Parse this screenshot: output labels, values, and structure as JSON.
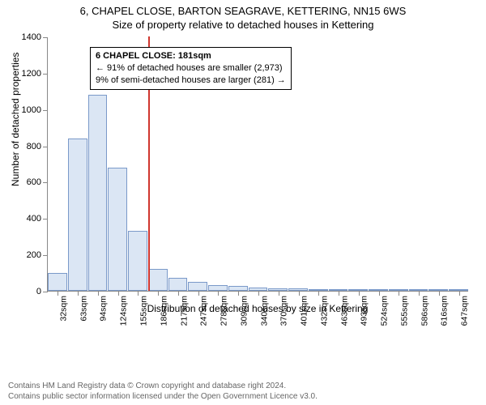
{
  "header": {
    "address_line": "6, CHAPEL CLOSE, BARTON SEAGRAVE, KETTERING, NN15 6WS",
    "subtitle": "Size of property relative to detached houses in Kettering"
  },
  "axes": {
    "ylabel": "Number of detached properties",
    "xlabel": "Distribution of detached houses by size in Kettering",
    "ylim": [
      0,
      1400
    ],
    "ytick_step": 200,
    "ytick_labels": [
      "0",
      "200",
      "400",
      "600",
      "800",
      "1000",
      "1200",
      "1400"
    ]
  },
  "histogram": {
    "type": "histogram",
    "bar_fill": "#dbe6f4",
    "bar_border": "#7a99c9",
    "background_color": "#ffffff",
    "axis_color": "#888888",
    "categories": [
      "32sqm",
      "63sqm",
      "94sqm",
      "124sqm",
      "155sqm",
      "186sqm",
      "217sqm",
      "247sqm",
      "278sqm",
      "309sqm",
      "340sqm",
      "370sqm",
      "401sqm",
      "432sqm",
      "463sqm",
      "493sqm",
      "524sqm",
      "555sqm",
      "586sqm",
      "616sqm",
      "647sqm"
    ],
    "values": [
      100,
      840,
      1080,
      680,
      330,
      120,
      70,
      50,
      30,
      25,
      20,
      15,
      15,
      3,
      2,
      2,
      1,
      1,
      1,
      1,
      1
    ]
  },
  "marker": {
    "color": "#d0362f",
    "category_index": 5,
    "line1": "6 CHAPEL CLOSE: 181sqm",
    "line2": "← 91% of detached houses are smaller (2,973)",
    "line3": "9% of semi-detached houses are larger (281) →"
  },
  "attribution": {
    "line1": "Contains HM Land Registry data © Crown copyright and database right 2024.",
    "line2": "Contains public sector information licensed under the Open Government Licence v3.0."
  }
}
